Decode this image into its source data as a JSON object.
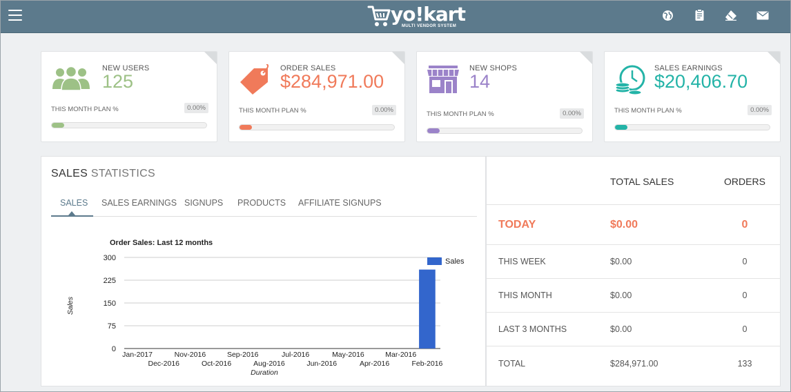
{
  "header": {
    "brand": "yo!kart",
    "tagline": "MULTI VENDOR SYSTEM",
    "menu_icon": "hamburger-menu-icon",
    "icons": [
      "globe-icon",
      "clipboard-icon",
      "eraser-icon",
      "envelope-icon"
    ]
  },
  "stats": [
    {
      "label": "NEW USERS",
      "value": "125",
      "plan_label": "THIS MONTH PLAN %",
      "percent": "0.00%",
      "progress_percent": 8,
      "color": "#9dc186",
      "icon": "users-icon"
    },
    {
      "label": "ORDER SALES",
      "value": "$284,971.00",
      "plan_label": "THIS MONTH PLAN %",
      "percent": "0.00%",
      "progress_percent": 8,
      "color": "#f07a5a",
      "icon": "price-tag-icon"
    },
    {
      "label": "NEW SHOPS",
      "value": "14",
      "plan_label": "THIS MONTH PLAN %",
      "percent": "0.00%",
      "progress_percent": 8,
      "color": "#9b83c9",
      "icon": "shop-icon"
    },
    {
      "label": "SALES EARNINGS",
      "value": "$20,406.70",
      "plan_label": "THIS MONTH PLAN %",
      "percent": "0.00%",
      "progress_percent": 8,
      "color": "#23b3a7",
      "icon": "coins-clock-icon"
    }
  ],
  "sales_stats": {
    "title_bold": "SALES",
    "title_light": "STATISTICS",
    "tabs": [
      "SALES",
      "SALES EARNINGS",
      "SIGNUPS",
      "PRODUCTS",
      "AFFILIATE SIGNUPS"
    ],
    "active_tab": "SALES"
  },
  "chart_data": {
    "type": "bar",
    "title": "Order Sales: Last 12 months",
    "xlabel": "Duration",
    "ylabel": "Sales",
    "categories": [
      "Jan-2017",
      "Dec-2016",
      "Nov-2016",
      "Oct-2016",
      "Sep-2016",
      "Aug-2016",
      "Jul-2016",
      "Jun-2016",
      "May-2016",
      "Apr-2016",
      "Mar-2016",
      "Feb-2016"
    ],
    "series": [
      {
        "name": "Sales",
        "values": [
          0,
          0,
          0,
          0,
          0,
          0,
          0,
          0,
          0,
          0,
          0,
          260
        ],
        "color": "#3366cc"
      }
    ],
    "ylim": [
      0,
      300
    ],
    "yticks": [
      0,
      75,
      150,
      225,
      300
    ],
    "grid": true,
    "legend": "right"
  },
  "summary": {
    "headers": [
      "",
      "TOTAL SALES",
      "ORDERS"
    ],
    "rows": [
      {
        "period": "TODAY",
        "total_sales": "$0.00",
        "orders": "0"
      },
      {
        "period": "THIS WEEK",
        "total_sales": "$0.00",
        "orders": "0"
      },
      {
        "period": "THIS MONTH",
        "total_sales": "$0.00",
        "orders": "0"
      },
      {
        "period": "LAST 3 MONTHS",
        "total_sales": "$0.00",
        "orders": "0"
      },
      {
        "period": "TOTAL",
        "total_sales": "$284,971.00",
        "orders": "133"
      }
    ]
  }
}
